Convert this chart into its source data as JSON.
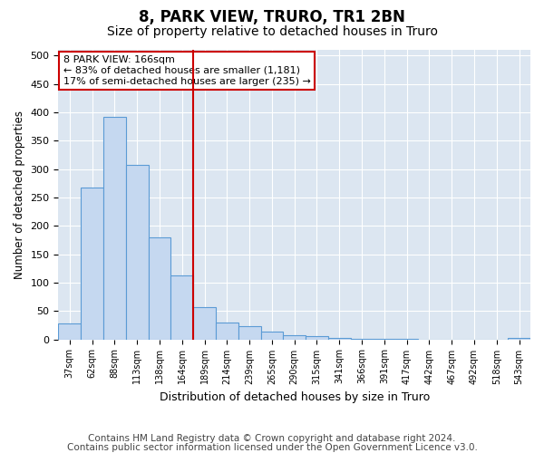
{
  "title": "8, PARK VIEW, TRURO, TR1 2BN",
  "subtitle": "Size of property relative to detached houses in Truro",
  "xlabel": "Distribution of detached houses by size in Truro",
  "ylabel": "Number of detached properties",
  "categories": [
    "37sqm",
    "62sqm",
    "88sqm",
    "113sqm",
    "138sqm",
    "164sqm",
    "189sqm",
    "214sqm",
    "239sqm",
    "265sqm",
    "290sqm",
    "315sqm",
    "341sqm",
    "366sqm",
    "391sqm",
    "417sqm",
    "442sqm",
    "467sqm",
    "492sqm",
    "518sqm",
    "543sqm"
  ],
  "values": [
    28,
    267,
    392,
    308,
    179,
    113,
    57,
    30,
    24,
    13,
    7,
    5,
    2,
    1,
    1,
    1,
    0,
    0,
    0,
    0,
    3
  ],
  "bar_color": "#c5d8f0",
  "bar_edge_color": "#5b9bd5",
  "vline_x": 5.5,
  "vline_color": "#cc0000",
  "annotation_text": "8 PARK VIEW: 166sqm\n← 83% of detached houses are smaller (1,181)\n17% of semi-detached houses are larger (235) →",
  "annotation_box_color": "#ffffff",
  "annotation_box_edge_color": "#cc0000",
  "ylim": [
    0,
    510
  ],
  "yticks": [
    0,
    50,
    100,
    150,
    200,
    250,
    300,
    350,
    400,
    450,
    500
  ],
  "footer_line1": "Contains HM Land Registry data © Crown copyright and database right 2024.",
  "footer_line2": "Contains public sector information licensed under the Open Government Licence v3.0.",
  "plot_bg_color": "#dce6f1",
  "title_fontsize": 12,
  "subtitle_fontsize": 10,
  "footer_fontsize": 7.5
}
